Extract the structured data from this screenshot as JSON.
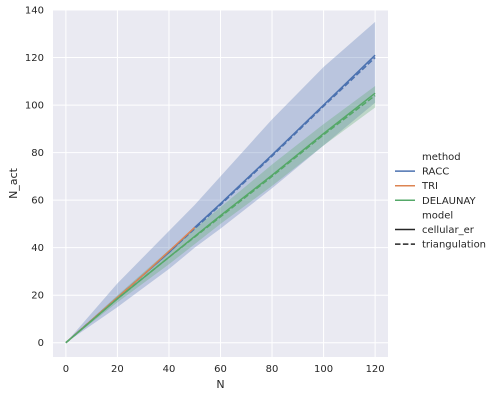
{
  "chart_data": {
    "type": "line",
    "xlabel": "N",
    "ylabel": "N_act",
    "xlim": [
      -5,
      125
    ],
    "ylim": [
      -6,
      140
    ],
    "x_ticks": [
      0,
      20,
      40,
      60,
      80,
      100,
      120
    ],
    "y_ticks": [
      0,
      20,
      40,
      60,
      80,
      100,
      120,
      140
    ],
    "grid": true,
    "background": "#eaeaf2",
    "legend_position": "right",
    "legend": {
      "hue_title": "method",
      "style_title": "model",
      "hue_entries": [
        {
          "label": "RACC",
          "color": "#4c72b0"
        },
        {
          "label": "TRI",
          "color": "#dd8452"
        },
        {
          "label": "DELAUNAY",
          "color": "#55a868"
        }
      ],
      "style_entries": [
        {
          "label": "cellular_er",
          "dash": "solid"
        },
        {
          "label": "triangulation",
          "dash": "dashed"
        }
      ]
    },
    "series": [
      {
        "method": "RACC",
        "model": "cellular_er",
        "color": "#4c72b0",
        "dash": "solid",
        "x": [
          0,
          20,
          40,
          50,
          60,
          80,
          100,
          120
        ],
        "y": [
          0,
          19,
          38,
          48.5,
          58.5,
          79,
          100,
          121
        ],
        "band_lower": [
          0,
          15,
          31,
          40,
          48,
          65,
          83,
          101
        ],
        "band_upper": [
          0,
          25,
          47,
          58,
          70,
          94,
          116,
          135
        ]
      },
      {
        "method": "RACC",
        "model": "triangulation",
        "color": "#4c72b0",
        "dash": "dashed",
        "x": [
          0,
          20,
          40,
          50,
          60,
          80,
          100,
          120
        ],
        "y": [
          0,
          19,
          38,
          48,
          58,
          78.5,
          99.5,
          120
        ]
      },
      {
        "method": "TRI",
        "model": "cellular_er",
        "color": "#dd8452",
        "dash": "solid",
        "x": [
          0,
          10,
          20,
          30,
          40,
          50
        ],
        "y": [
          0,
          9.5,
          19,
          28.5,
          38.5,
          48.5
        ]
      },
      {
        "method": "DELAUNAY",
        "model": "cellular_er",
        "color": "#55a868",
        "dash": "solid",
        "x": [
          0,
          20,
          40,
          60,
          80,
          100,
          120
        ],
        "y": [
          0,
          18.5,
          36,
          53.5,
          70.5,
          88,
          105
        ],
        "band_lower": [
          0,
          17,
          33,
          50,
          66,
          83,
          99
        ],
        "band_upper": [
          0,
          20,
          39,
          57,
          75,
          92,
          108
        ]
      },
      {
        "method": "DELAUNAY",
        "model": "triangulation",
        "color": "#55a868",
        "dash": "dashed",
        "x": [
          0,
          20,
          40,
          60,
          80,
          100,
          120
        ],
        "y": [
          0,
          18.5,
          36,
          53,
          70,
          87.5,
          104
        ]
      }
    ]
  }
}
